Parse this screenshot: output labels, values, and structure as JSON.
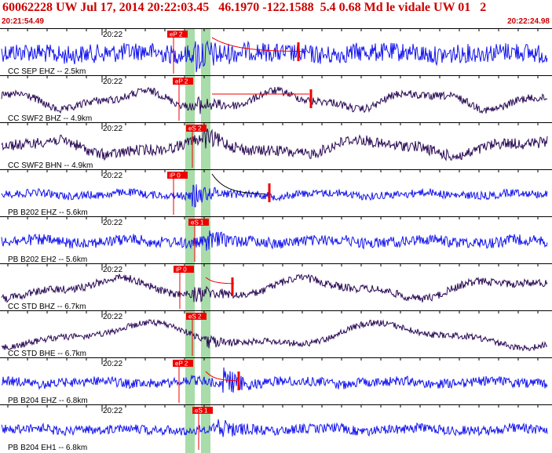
{
  "header": {
    "title": "60062228 UW Jul 17, 2014 20:22:03.45   46.1970 -122.1588  5.4 0.68 Md le vidale UW 01   2",
    "start_time": "20:21:54.49",
    "end_time": "20:22:24.98"
  },
  "colors": {
    "header_red": "#cc0000",
    "pick_red": "#ee0000",
    "shade_green": "#a8dca8",
    "blue": "#1515ee",
    "purple": "#2a0a55"
  },
  "traces": [
    {
      "label": "CC SEP EHZ -- 2.5km",
      "time": "20:22",
      "pick": "eP 2",
      "color": "#1515ee"
    },
    {
      "label": "CC SWF2 BHZ -- 4.9km",
      "time": "20:22",
      "pick": "eP 2",
      "color": "#2a0a55"
    },
    {
      "label": "CC SWF2 BHN -- 4.9km",
      "time": "20:22",
      "pick": "eS 2",
      "color": "#2a0a55"
    },
    {
      "label": "PB B202 EHZ -- 5.6km",
      "time": "20:22",
      "pick": "iP 0",
      "color": "#1515ee"
    },
    {
      "label": "PB B202 EH2 -- 5.6km",
      "time": "20:22",
      "pick": "eS 1",
      "color": "#1515ee"
    },
    {
      "label": "CC STD BHZ -- 6.7km",
      "time": "20:22",
      "pick": "iP 0",
      "color": "#2a0a55"
    },
    {
      "label": "CC STD BHE -- 6.7km",
      "time": "20:22",
      "pick": "eS 2",
      "color": "#2a0a55"
    },
    {
      "label": "PB B204 EHZ -- 6.8km",
      "time": "20:22",
      "pick": "eP 2",
      "color": "#1515ee"
    },
    {
      "label": "PB B204 EH1 -- 6.8km",
      "time": "20:22",
      "pick": "eS 1",
      "color": "#1515ee"
    }
  ]
}
